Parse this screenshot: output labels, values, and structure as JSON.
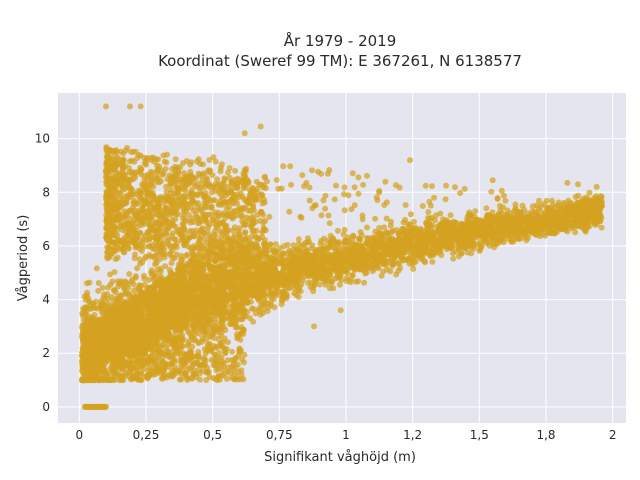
{
  "chart_data": {
    "type": "scatter",
    "title": "År 1979 - 2019",
    "subtitle": "Koordinat (Sweref 99 TM): E 367261, N 6138577",
    "xlabel": "Signifikant våghöjd (m)",
    "ylabel": "Vågperiod (s)",
    "xlim": [
      -0.08,
      2.05
    ],
    "ylim": [
      -0.6,
      11.7
    ],
    "x_ticks": [
      0,
      0.25,
      0.5,
      0.75,
      1,
      1.25,
      1.5,
      1.75,
      2
    ],
    "x_tick_labels": [
      "0",
      "0,25",
      "0,5",
      "0,75",
      "1",
      "1,2",
      "1,5",
      "1,8",
      "2"
    ],
    "y_ticks": [
      0,
      2,
      4,
      6,
      8,
      10
    ],
    "y_tick_labels": [
      "0",
      "2",
      "4",
      "6",
      "8",
      "10"
    ],
    "grid": true,
    "marker_color": "#d4a220",
    "point_clusters": [
      {
        "x_min": 0.02,
        "x_max": 0.1,
        "y_min": 0,
        "y_max": 0.05
      },
      {
        "x_min": 0.02,
        "x_max": 0.25,
        "y_min": 1.0,
        "y_max": 3.0
      },
      {
        "x_min": 0.1,
        "x_max": 0.4,
        "y_min": 5.5,
        "y_max": 11.2
      },
      {
        "x_min": 0.1,
        "x_max": 0.75,
        "y_min": 1.8,
        "y_max": 6.5
      },
      {
        "x_min": 0.4,
        "x_max": 0.9,
        "y_min": 6.5,
        "y_max": 10.4
      },
      {
        "x_min": 0.75,
        "x_max": 1.96,
        "y_min": 3.0,
        "y_max": 8.3
      }
    ],
    "scatter_points": [
      {
        "x": 0.1,
        "y": 11.2
      },
      {
        "x": 0.19,
        "y": 11.2
      },
      {
        "x": 0.23,
        "y": 11.2
      },
      {
        "x": 0.68,
        "y": 10.45
      },
      {
        "x": 0.62,
        "y": 10.2
      },
      {
        "x": 1.24,
        "y": 9.2
      },
      {
        "x": 1.55,
        "y": 8.45
      },
      {
        "x": 1.83,
        "y": 8.35
      },
      {
        "x": 1.87,
        "y": 8.3
      },
      {
        "x": 1.94,
        "y": 8.2
      },
      {
        "x": 1.96,
        "y": 7.5
      },
      {
        "x": 0.88,
        "y": 3.0
      },
      {
        "x": 0.98,
        "y": 3.6
      },
      {
        "x": 0.06,
        "y": 0
      },
      {
        "x": 0.09,
        "y": 0
      },
      {
        "x": 0.03,
        "y": 0
      },
      {
        "x": 0.01,
        "y": 1.9
      },
      {
        "x": 0.01,
        "y": 2.6
      }
    ]
  }
}
